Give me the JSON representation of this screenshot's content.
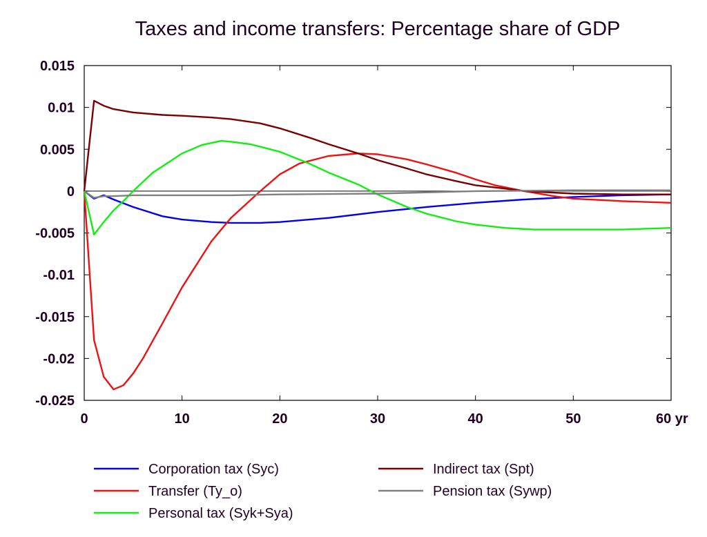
{
  "chart_data": {
    "type": "line",
    "title": "Taxes and income transfers: Percentage share of GDP",
    "xlabel": "",
    "ylabel": "",
    "xlim": [
      0,
      60
    ],
    "ylim": [
      -0.025,
      0.015
    ],
    "grid": false,
    "legend_position": "bottom",
    "x_ticks": [
      0,
      10,
      20,
      30,
      40,
      50,
      60
    ],
    "x_tick_labels": [
      "0",
      "10",
      "20",
      "30",
      "40",
      "50",
      "60 yr"
    ],
    "y_ticks": [
      0.015,
      0.01,
      0.005,
      0,
      -0.005,
      -0.01,
      -0.015,
      -0.02,
      -0.025
    ],
    "y_tick_labels": [
      "0.015",
      "0.01",
      "0.005",
      "0",
      "-0.005",
      "-0.01",
      "-0.015",
      "-0.02",
      "-0.025"
    ],
    "series": [
      {
        "name": "Corporation tax (Syc)",
        "color": "#0000ee",
        "points": [
          [
            0,
            0
          ],
          [
            1,
            -0.0009
          ],
          [
            2,
            -0.0005
          ],
          [
            3,
            -0.001
          ],
          [
            5,
            -0.0019
          ],
          [
            8,
            -0.003
          ],
          [
            10,
            -0.0034
          ],
          [
            13,
            -0.0037
          ],
          [
            15,
            -0.0038
          ],
          [
            18,
            -0.0038
          ],
          [
            20,
            -0.0037
          ],
          [
            25,
            -0.0032
          ],
          [
            30,
            -0.0025
          ],
          [
            35,
            -0.0019
          ],
          [
            40,
            -0.0014
          ],
          [
            45,
            -0.001
          ],
          [
            50,
            -0.0007
          ],
          [
            55,
            -0.0005
          ],
          [
            60,
            -0.0004
          ]
        ]
      },
      {
        "name": "Transfer (Ty_o)",
        "color": "#ee1111",
        "points": [
          [
            0,
            0
          ],
          [
            1,
            -0.0178
          ],
          [
            2,
            -0.0222
          ],
          [
            3,
            -0.0237
          ],
          [
            4,
            -0.0232
          ],
          [
            5,
            -0.0218
          ],
          [
            6,
            -0.02
          ],
          [
            8,
            -0.0158
          ],
          [
            10,
            -0.0115
          ],
          [
            13,
            -0.006
          ],
          [
            15,
            -0.0032
          ],
          [
            18,
            0
          ],
          [
            20,
            0.002
          ],
          [
            22,
            0.0033
          ],
          [
            25,
            0.0042
          ],
          [
            28,
            0.0045
          ],
          [
            30,
            0.0044
          ],
          [
            33,
            0.0038
          ],
          [
            35,
            0.0032
          ],
          [
            38,
            0.0022
          ],
          [
            40,
            0.0014
          ],
          [
            42,
            0.0007
          ],
          [
            45,
            0
          ],
          [
            48,
            -0.0006
          ],
          [
            50,
            -0.0009
          ],
          [
            55,
            -0.0012
          ],
          [
            60,
            -0.0014
          ]
        ]
      },
      {
        "name": "Personal tax (Syk+Sya)",
        "color": "#11ee11",
        "points": [
          [
            0,
            0
          ],
          [
            1,
            -0.0052
          ],
          [
            2,
            -0.0037
          ],
          [
            3,
            -0.0023
          ],
          [
            4,
            -0.0012
          ],
          [
            5,
            0
          ],
          [
            7,
            0.0022
          ],
          [
            10,
            0.0045
          ],
          [
            12,
            0.0055
          ],
          [
            14,
            0.006
          ],
          [
            15,
            0.0059
          ],
          [
            17,
            0.0056
          ],
          [
            20,
            0.0047
          ],
          [
            23,
            0.0033
          ],
          [
            25,
            0.0022
          ],
          [
            28,
            0.0008
          ],
          [
            30,
            -0.0004
          ],
          [
            33,
            -0.0019
          ],
          [
            35,
            -0.0027
          ],
          [
            38,
            -0.0036
          ],
          [
            40,
            -0.004
          ],
          [
            43,
            -0.0044
          ],
          [
            46,
            -0.0046
          ],
          [
            50,
            -0.0046
          ],
          [
            55,
            -0.0046
          ],
          [
            60,
            -0.0044
          ]
        ]
      },
      {
        "name": "Indirect tax (Spt)",
        "color": "#7a0000",
        "points": [
          [
            0,
            0
          ],
          [
            1,
            0.0108
          ],
          [
            2,
            0.0102
          ],
          [
            3,
            0.0098
          ],
          [
            5,
            0.0094
          ],
          [
            8,
            0.0091
          ],
          [
            10,
            0.009
          ],
          [
            13,
            0.0088
          ],
          [
            15,
            0.0086
          ],
          [
            18,
            0.0081
          ],
          [
            20,
            0.0075
          ],
          [
            23,
            0.0064
          ],
          [
            25,
            0.0056
          ],
          [
            28,
            0.0045
          ],
          [
            30,
            0.0037
          ],
          [
            33,
            0.0027
          ],
          [
            35,
            0.002
          ],
          [
            38,
            0.0012
          ],
          [
            40,
            0.0007
          ],
          [
            43,
            0.0003
          ],
          [
            45,
            0
          ],
          [
            50,
            -0.0003
          ],
          [
            55,
            -0.0004
          ],
          [
            60,
            -0.0004
          ]
        ]
      },
      {
        "name": "Pension tax (Sywp)",
        "color": "#808080",
        "points": [
          [
            0,
            0
          ],
          [
            1,
            -0.0008
          ],
          [
            2,
            -0.0006
          ],
          [
            3,
            -0.0006
          ],
          [
            5,
            -0.0005
          ],
          [
            10,
            -0.0005
          ],
          [
            15,
            -0.0005
          ],
          [
            20,
            -0.0004
          ],
          [
            30,
            -0.0003
          ],
          [
            40,
            0
          ],
          [
            50,
            0.0001
          ],
          [
            60,
            0.0001
          ]
        ]
      }
    ]
  }
}
